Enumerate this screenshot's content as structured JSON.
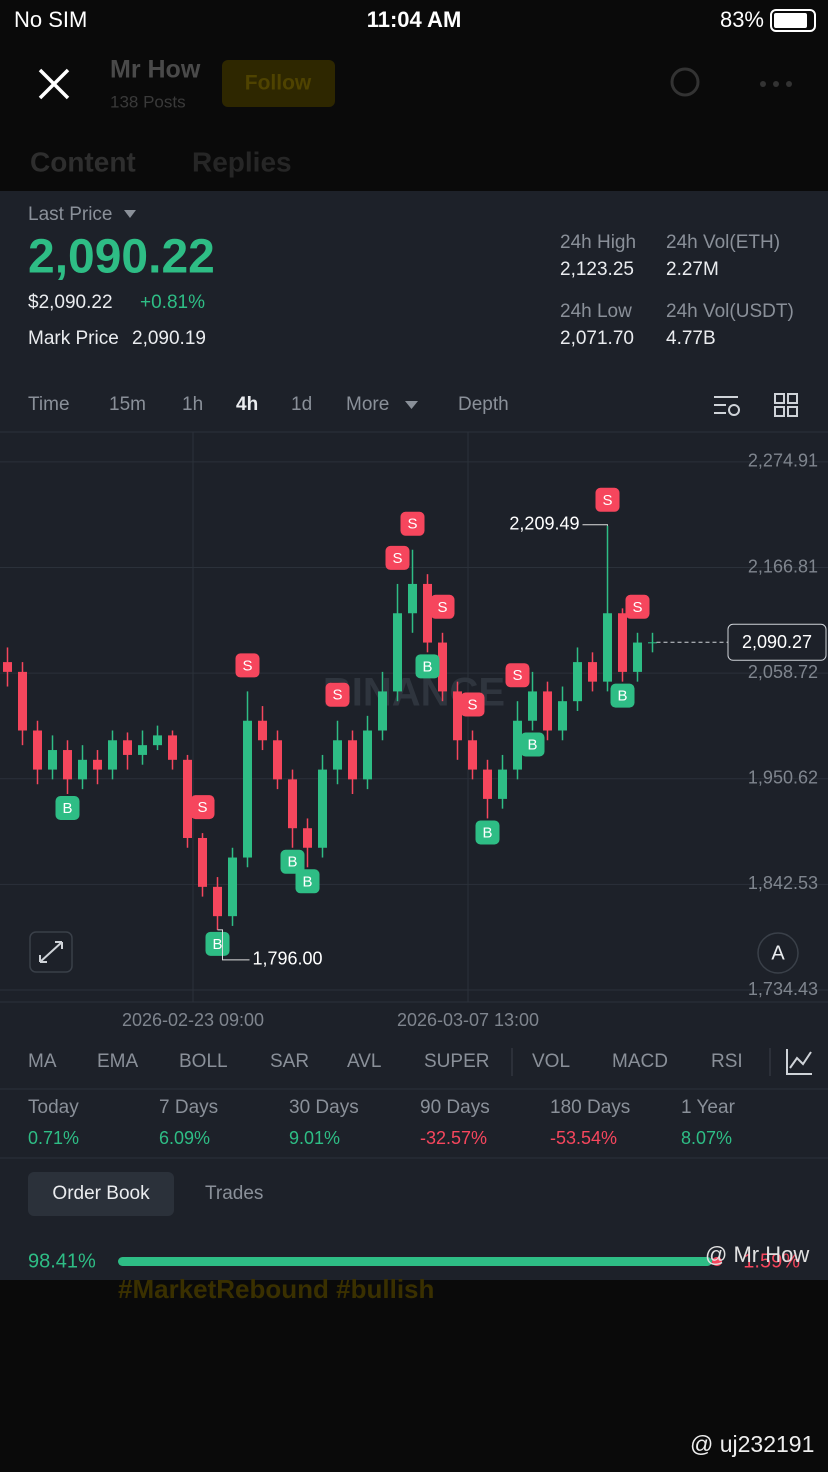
{
  "status_bar": {
    "carrier": "No SIM",
    "time": "11:04 AM",
    "battery": "83%"
  },
  "header": {
    "name": "Mr How",
    "posts": "138 Posts",
    "follow": "Follow",
    "tabs": [
      "Content",
      "Replies"
    ]
  },
  "ticker": {
    "last_price_label": "Last Price",
    "last_price": "2,090.22",
    "usd_price": "$2,090.22",
    "change": "+0.81%",
    "mark_price_label": "Mark Price",
    "mark_price": "2,090.19",
    "stats": [
      {
        "label": "24h High",
        "value": "2,123.25"
      },
      {
        "label": "24h Vol(ETH)",
        "value": "2.27M"
      },
      {
        "label": "24h Low",
        "value": "2,071.70"
      },
      {
        "label": "24h Vol(USDT)",
        "value": "4.77B"
      }
    ]
  },
  "intervals": [
    "Time",
    "15m",
    "1h",
    "4h",
    "1d",
    "More",
    "Depth"
  ],
  "chart_data": {
    "type": "candlestick",
    "watermark": "BINANCE",
    "open": [
      2070,
      2060,
      2000,
      1960,
      1980,
      1950,
      1970,
      1960,
      1990,
      1975,
      1985,
      1995,
      1970,
      1890,
      1840,
      1810,
      1870,
      2010,
      1990,
      1950,
      1900,
      1880,
      1960,
      1990,
      1950,
      2000,
      2040,
      2120,
      2150,
      2090,
      2040,
      1990,
      1960,
      1930,
      1960,
      2010,
      2040,
      2000,
      2030,
      2070,
      2050,
      2120,
      2060,
      2090
    ],
    "high": [
      2085,
      2070,
      2010,
      1995,
      1990,
      1985,
      1980,
      2000,
      1998,
      2000,
      2005,
      2000,
      1975,
      1895,
      1850,
      1880,
      2040,
      2025,
      2000,
      1960,
      1910,
      1975,
      2010,
      2000,
      2015,
      2060,
      2150,
      2185,
      2160,
      2100,
      2050,
      2000,
      1970,
      1975,
      2030,
      2060,
      2050,
      2045,
      2085,
      2080,
      2209.49,
      2125,
      2100,
      2100
    ],
    "low": [
      2045,
      1985,
      1945,
      1950,
      1935,
      1940,
      1945,
      1950,
      1960,
      1965,
      1980,
      1960,
      1880,
      1830,
      1796,
      1800,
      1860,
      1980,
      1940,
      1880,
      1860,
      1870,
      1945,
      1935,
      1940,
      1990,
      2030,
      2100,
      2080,
      2030,
      1970,
      1950,
      1910,
      1920,
      1950,
      2000,
      1990,
      1990,
      2020,
      2040,
      2040,
      2050,
      2050,
      2080
    ],
    "close": [
      2060,
      2000,
      1960,
      1980,
      1950,
      1970,
      1960,
      1990,
      1975,
      1985,
      1995,
      1970,
      1890,
      1840,
      1810,
      1870,
      2010,
      1990,
      1950,
      1900,
      1880,
      1960,
      1990,
      1950,
      2000,
      2040,
      2120,
      2150,
      2090,
      2040,
      1990,
      1960,
      1930,
      1960,
      2010,
      2040,
      2000,
      2030,
      2070,
      2050,
      2120,
      2060,
      2090,
      2090.27
    ],
    "signals": [
      null,
      null,
      null,
      null,
      "B",
      null,
      null,
      null,
      null,
      null,
      null,
      null,
      null,
      "S",
      "B",
      null,
      "S",
      null,
      null,
      "B",
      "B",
      null,
      "S",
      null,
      null,
      null,
      "S",
      "S",
      "B",
      "S",
      null,
      "S",
      "B",
      null,
      "S",
      "B",
      null,
      null,
      null,
      null,
      "S",
      "B",
      "S",
      null
    ],
    "ylim": [
      1724.2,
      2297.3
    ],
    "yticks": [
      {
        "value": 2274.91,
        "label": "2,274.91"
      },
      {
        "value": 2166.81,
        "label": "2,166.81"
      },
      {
        "value": 2058.72,
        "label": "2,058.72"
      },
      {
        "value": 1950.62,
        "label": "1,950.62"
      },
      {
        "value": 1842.53,
        "label": "1,842.53"
      },
      {
        "value": 1734.43,
        "label": "1,734.43"
      }
    ],
    "x_labels": [
      "2026-02-23 09:00",
      "2026-03-07 13:00"
    ],
    "high_marker": {
      "value": 2209.49,
      "label": "2,209.49"
    },
    "low_marker": {
      "value": 1796,
      "label": "1,796.00"
    },
    "price_tag": {
      "value": 2090.27,
      "label": "2,090.27"
    },
    "grid": true,
    "up_color": "#2ebd85",
    "down_color": "#f6465d"
  },
  "indicators": [
    "MA",
    "EMA",
    "BOLL",
    "SAR",
    "AVL",
    "SUPER",
    "VOL",
    "MACD",
    "RSI"
  ],
  "performance": [
    {
      "label": "Today",
      "value": "0.71%"
    },
    {
      "label": "7 Days",
      "value": "6.09%"
    },
    {
      "label": "30 Days",
      "value": "9.01%"
    },
    {
      "label": "90 Days",
      "value": "-32.57%"
    },
    {
      "label": "180 Days",
      "value": "-53.54%"
    },
    {
      "label": "1 Year",
      "value": "8.07%"
    }
  ],
  "order_book": {
    "tabs": [
      "Order Book",
      "Trades"
    ],
    "buy": "98.41%",
    "sell": "1.59%"
  },
  "post": {
    "hashtags": "#MarketRebound #bullish",
    "watermark": "@ Mr How",
    "user_watermark": "@ uj232191"
  }
}
